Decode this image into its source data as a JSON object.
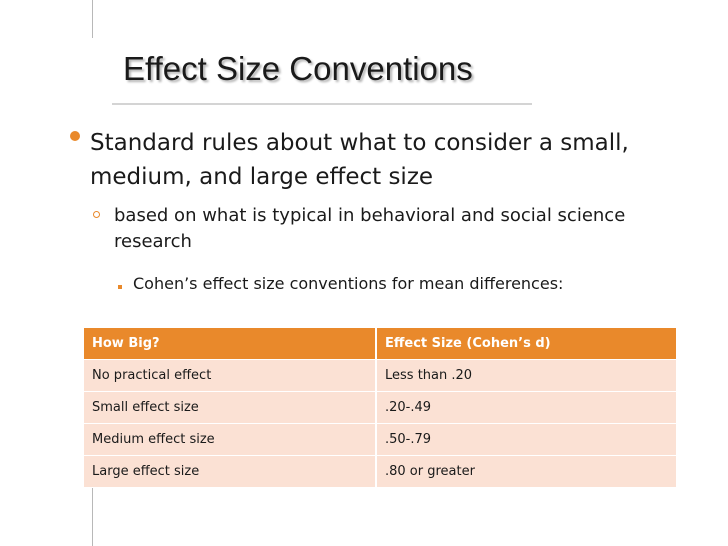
{
  "slide": {
    "title": "Effect Size Conventions",
    "bullets": {
      "level1": "Standard rules about what to consider a small, medium, and large effect size",
      "level2": "based on what is typical in behavioral and social science research",
      "level3": "Cohen’s effect size conventions for mean differences:"
    },
    "colors": {
      "accent": "#e9892b",
      "row_fill": "#fbe1d4"
    },
    "table": {
      "headers": [
        "How Big?",
        "Effect Size  (Cohen’s d)"
      ],
      "rows": [
        [
          "No practical effect",
          "Less than .20"
        ],
        [
          "Small effect size",
          ".20-.49"
        ],
        [
          "Medium effect size",
          ".50-.79"
        ],
        [
          "Large effect size",
          ".80 or greater"
        ]
      ]
    }
  }
}
